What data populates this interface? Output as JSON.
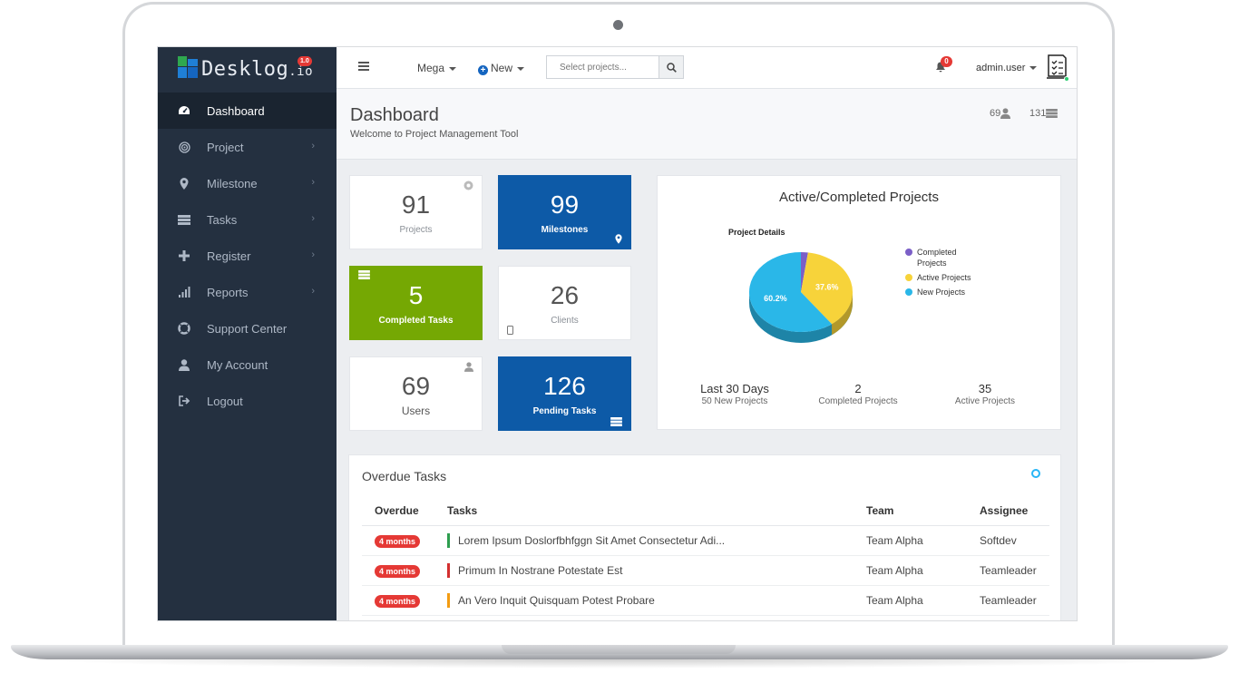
{
  "brand": {
    "name": "Desklog",
    "suffix": ".io",
    "version": "1.0"
  },
  "sidebar": {
    "items": [
      {
        "label": "Dashboard",
        "icon": "dashboard-icon",
        "active": true
      },
      {
        "label": "Project",
        "icon": "target-icon"
      },
      {
        "label": "Milestone",
        "icon": "map-marker-icon"
      },
      {
        "label": "Tasks",
        "icon": "tasks-icon"
      },
      {
        "label": "Register",
        "icon": "plus-icon"
      },
      {
        "label": "Reports",
        "icon": "bar-chart-icon"
      },
      {
        "label": "Support Center",
        "icon": "life-ring-icon"
      },
      {
        "label": "My Account",
        "icon": "user-icon"
      },
      {
        "label": "Logout",
        "icon": "sign-out-icon"
      }
    ]
  },
  "topbar": {
    "mega_label": "Mega",
    "new_label": "New",
    "search_placeholder": "Select projects...",
    "notification_count": "0",
    "user_name": "admin.user"
  },
  "header": {
    "title": "Dashboard",
    "subtitle": "Welcome to Project Management Tool",
    "users_count": "69",
    "tasks_count": "131"
  },
  "cards": {
    "projects": {
      "value": "91",
      "label": "Projects"
    },
    "milestones": {
      "value": "99",
      "label": "Milestones"
    },
    "completed_tasks": {
      "value": "5",
      "label": "Completed Tasks"
    },
    "clients": {
      "value": "26",
      "label": "Clients"
    },
    "users": {
      "value": "69",
      "label": "Users"
    },
    "pending_tasks": {
      "value": "126",
      "label": "Pending Tasks"
    }
  },
  "pie": {
    "title": "Active/Completed Projects",
    "subtitle": "Project Details",
    "stats": [
      {
        "value": "Last 30 Days",
        "label": "50 New Projects"
      },
      {
        "value": "2",
        "label": "Completed Projects"
      },
      {
        "value": "35",
        "label": "Active Projects"
      }
    ]
  },
  "chart_data": {
    "type": "pie",
    "title": "Project Details",
    "series": [
      {
        "name": "Completed Projects",
        "value": 2.2,
        "color": "#7b5fc7"
      },
      {
        "name": "Active Projects",
        "value": 37.6,
        "color": "#f7d33a"
      },
      {
        "name": "New Projects",
        "value": 60.2,
        "color": "#2ab7e8"
      }
    ],
    "data_labels": [
      "37.6%",
      "60.2%"
    ]
  },
  "overdue": {
    "title": "Overdue Tasks",
    "columns": [
      "Overdue",
      "Tasks",
      "Team",
      "Assignee"
    ],
    "rows": [
      {
        "overdue": "4 months",
        "task": "Lorem Ipsum Doslorfbhfggn Sit Amet Consectetur Adi...",
        "team": "Team Alpha",
        "assignee": "Softdev",
        "priority_color": "#2e9e4f"
      },
      {
        "overdue": "4 months",
        "task": "Primum In Nostrane Potestate Est",
        "team": "Team Alpha",
        "assignee": "Teamleader",
        "priority_color": "#d32f2f"
      },
      {
        "overdue": "4 months",
        "task": "An Vero Inquit Quisquam Potest Probare",
        "team": "Team Alpha",
        "assignee": "Teamleader",
        "priority_color": "#f39c12"
      }
    ]
  },
  "colors": {
    "sidebar": "#243040",
    "accent_blue": "#0d5aa7",
    "accent_green": "#75a803",
    "danger": "#e53935"
  }
}
